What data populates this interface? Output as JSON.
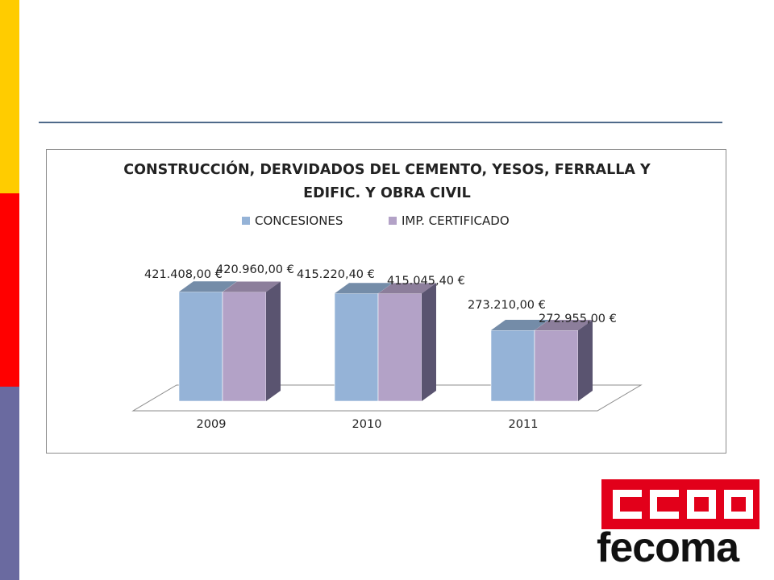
{
  "colors": {
    "stripe_top": "#ffcc00",
    "stripe_mid": "#ff0000",
    "stripe_bottom": "#6a6aa0",
    "series_1": "#95b3d7",
    "series_2": "#b3a2c7",
    "logo_red": "#e2001a"
  },
  "logo": {
    "wordmark": "fecoma",
    "symbol": "CCOO"
  },
  "chart_data": {
    "type": "bar",
    "style": "3d-clustered-column",
    "title_lines": [
      "CONSTRUCCIÓN, DERVIDADOS DEL CEMENTO, YESOS, FERRALLA Y",
      "EDIFIC. Y OBRA CIVIL"
    ],
    "categories": [
      "2009",
      "2010",
      "2011"
    ],
    "series": [
      {
        "name": "CONCESIONES",
        "values": [
          421408.0,
          415220.4,
          273210.0
        ],
        "labels": [
          "421.408,00 €",
          "415.220,40 €",
          "273.210,00 €"
        ]
      },
      {
        "name": "IMP. CERTIFICADO",
        "values": [
          420960.0,
          415045.4,
          272955.0
        ],
        "labels": [
          "420.960,00 €",
          "415.045,40 €",
          "272.955,00 €"
        ]
      }
    ],
    "legend_position": "top",
    "grid": false,
    "yaxis_visible": false
  }
}
